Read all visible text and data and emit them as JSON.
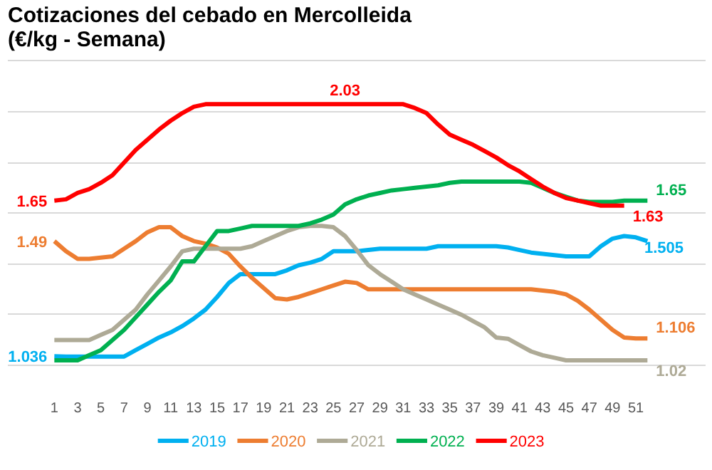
{
  "chart_data": {
    "type": "line",
    "title": "Cotizaciones del cebado en Mercolleida\n(€/kg - Semana)",
    "x": [
      1,
      2,
      3,
      4,
      5,
      6,
      7,
      8,
      9,
      10,
      11,
      12,
      13,
      14,
      15,
      16,
      17,
      18,
      19,
      20,
      21,
      22,
      23,
      24,
      25,
      26,
      27,
      28,
      29,
      30,
      31,
      32,
      33,
      34,
      35,
      36,
      37,
      38,
      39,
      40,
      41,
      42,
      43,
      44,
      45,
      46,
      47,
      48,
      49,
      50,
      51,
      52
    ],
    "xlim": [
      -3,
      57
    ],
    "xticks": [
      1,
      3,
      5,
      7,
      9,
      11,
      13,
      15,
      17,
      19,
      21,
      23,
      25,
      27,
      29,
      31,
      33,
      35,
      37,
      39,
      41,
      43,
      45,
      47,
      49,
      51
    ],
    "ylim": [
      1.0,
      2.2
    ],
    "yticks": [
      {
        "value": 1.0,
        "label": null
      },
      {
        "value": 1.2,
        "label": null
      },
      {
        "value": 1.4,
        "label": null
      },
      {
        "value": 1.6,
        "label": null
      },
      {
        "value": 1.8,
        "label": null
      },
      {
        "value": 2.0,
        "label": null
      },
      {
        "value": 2.2,
        "label": null
      }
    ],
    "tick_labels": "x",
    "grid": "y",
    "legend": "bottom",
    "line_style": "solid",
    "marker": "none",
    "series": [
      {
        "name": "2019",
        "color": "#00b0f0",
        "values": [
          1.036,
          1.035,
          1.035,
          1.035,
          1.035,
          1.035,
          1.035,
          1.06,
          1.085,
          1.11,
          1.13,
          1.155,
          1.185,
          1.22,
          1.27,
          1.325,
          1.36,
          1.36,
          1.36,
          1.36,
          1.375,
          1.395,
          1.405,
          1.42,
          1.45,
          1.45,
          1.45,
          1.455,
          1.46,
          1.46,
          1.46,
          1.46,
          1.46,
          1.47,
          1.47,
          1.47,
          1.47,
          1.47,
          1.47,
          1.465,
          1.455,
          1.445,
          1.44,
          1.435,
          1.43,
          1.43,
          1.43,
          1.47,
          1.5,
          1.51,
          1.505,
          1.49
        ],
        "value_labels": [
          "1.036",
          null,
          null,
          null,
          null,
          null,
          null,
          null,
          null,
          null,
          null,
          null,
          null,
          null,
          null,
          null,
          null,
          null,
          null,
          null,
          null,
          null,
          null,
          null,
          null,
          null,
          null,
          null,
          null,
          null,
          null,
          null,
          null,
          null,
          null,
          null,
          null,
          null,
          null,
          null,
          null,
          null,
          null,
          null,
          null,
          null,
          null,
          null,
          null,
          null,
          "1.505",
          null
        ]
      },
      {
        "name": "2020",
        "color": "#ed7d31",
        "values": [
          1.49,
          1.45,
          1.42,
          1.42,
          1.425,
          1.43,
          1.46,
          1.49,
          1.525,
          1.545,
          1.545,
          1.51,
          1.49,
          1.48,
          1.465,
          1.44,
          1.39,
          1.345,
          1.305,
          1.265,
          1.26,
          1.27,
          1.285,
          1.3,
          1.315,
          1.33,
          1.325,
          1.3,
          1.3,
          1.3,
          1.3,
          1.3,
          1.3,
          1.3,
          1.3,
          1.3,
          1.3,
          1.3,
          1.3,
          1.3,
          1.3,
          1.3,
          1.295,
          1.29,
          1.28,
          1.255,
          1.22,
          1.18,
          1.14,
          1.11,
          1.106,
          1.106
        ],
        "value_labels": [
          "1.49",
          null,
          null,
          null,
          null,
          null,
          null,
          null,
          null,
          null,
          null,
          null,
          null,
          null,
          null,
          null,
          null,
          null,
          null,
          null,
          null,
          null,
          null,
          null,
          null,
          null,
          null,
          null,
          null,
          null,
          null,
          null,
          null,
          null,
          null,
          null,
          null,
          null,
          null,
          null,
          null,
          null,
          null,
          null,
          null,
          null,
          null,
          null,
          null,
          null,
          null,
          "1.106"
        ]
      },
      {
        "name": "2021",
        "color": "#aeaa96",
        "values": [
          1.1,
          1.1,
          1.1,
          1.1,
          1.12,
          1.14,
          1.18,
          1.22,
          1.28,
          1.335,
          1.39,
          1.45,
          1.46,
          1.46,
          1.46,
          1.46,
          1.46,
          1.47,
          1.49,
          1.51,
          1.53,
          1.545,
          1.55,
          1.55,
          1.545,
          1.51,
          1.455,
          1.395,
          1.36,
          1.33,
          1.3,
          1.28,
          1.26,
          1.24,
          1.22,
          1.2,
          1.175,
          1.15,
          1.11,
          1.105,
          1.08,
          1.055,
          1.04,
          1.03,
          1.02,
          1.02,
          1.02,
          1.02,
          1.02,
          1.02,
          1.02,
          1.02
        ],
        "value_labels": [
          null,
          null,
          null,
          null,
          null,
          null,
          null,
          null,
          null,
          null,
          null,
          null,
          null,
          null,
          null,
          null,
          null,
          null,
          null,
          null,
          null,
          null,
          null,
          null,
          null,
          null,
          null,
          null,
          null,
          null,
          null,
          null,
          null,
          null,
          null,
          null,
          null,
          null,
          null,
          null,
          null,
          null,
          null,
          null,
          null,
          null,
          null,
          null,
          null,
          null,
          null,
          "1.02"
        ]
      },
      {
        "name": "2022",
        "color": "#00b050",
        "values": [
          1.02,
          1.02,
          1.02,
          1.04,
          1.06,
          1.1,
          1.14,
          1.19,
          1.24,
          1.29,
          1.335,
          1.41,
          1.41,
          1.47,
          1.53,
          1.53,
          1.54,
          1.55,
          1.55,
          1.55,
          1.55,
          1.55,
          1.56,
          1.575,
          1.595,
          1.635,
          1.655,
          1.67,
          1.68,
          1.69,
          1.695,
          1.7,
          1.705,
          1.71,
          1.72,
          1.725,
          1.725,
          1.725,
          1.725,
          1.725,
          1.725,
          1.72,
          1.7,
          1.68,
          1.665,
          1.65,
          1.645,
          1.645,
          1.645,
          1.65,
          1.65,
          1.65
        ],
        "value_labels": [
          null,
          null,
          null,
          null,
          null,
          null,
          null,
          null,
          null,
          null,
          null,
          null,
          null,
          null,
          null,
          null,
          null,
          null,
          null,
          null,
          null,
          null,
          null,
          null,
          null,
          null,
          null,
          null,
          null,
          null,
          null,
          null,
          null,
          null,
          null,
          null,
          null,
          null,
          null,
          null,
          null,
          null,
          null,
          null,
          null,
          null,
          null,
          null,
          null,
          null,
          null,
          "1.65"
        ]
      },
      {
        "name": "2023",
        "color": "#ff0000",
        "values": [
          1.65,
          1.655,
          1.68,
          1.695,
          1.72,
          1.75,
          1.8,
          1.85,
          1.89,
          1.93,
          1.965,
          1.995,
          2.02,
          2.03,
          2.03,
          2.03,
          2.03,
          2.03,
          2.03,
          2.03,
          2.03,
          2.03,
          2.03,
          2.03,
          2.03,
          2.03,
          2.03,
          2.03,
          2.03,
          2.03,
          2.03,
          2.015,
          1.995,
          1.95,
          1.91,
          1.89,
          1.87,
          1.845,
          1.82,
          1.79,
          1.765,
          1.735,
          1.705,
          1.68,
          1.66,
          1.65,
          1.64,
          1.63,
          1.63,
          1.63,
          null,
          null
        ],
        "value_labels": [
          "1.65",
          null,
          null,
          null,
          null,
          null,
          null,
          null,
          null,
          null,
          null,
          null,
          null,
          null,
          null,
          null,
          null,
          null,
          null,
          null,
          null,
          null,
          null,
          null,
          null,
          "2.03",
          null,
          null,
          null,
          null,
          null,
          null,
          null,
          null,
          null,
          null,
          null,
          null,
          null,
          null,
          null,
          null,
          null,
          null,
          null,
          null,
          null,
          null,
          null,
          "1.63",
          null,
          null
        ]
      }
    ]
  }
}
